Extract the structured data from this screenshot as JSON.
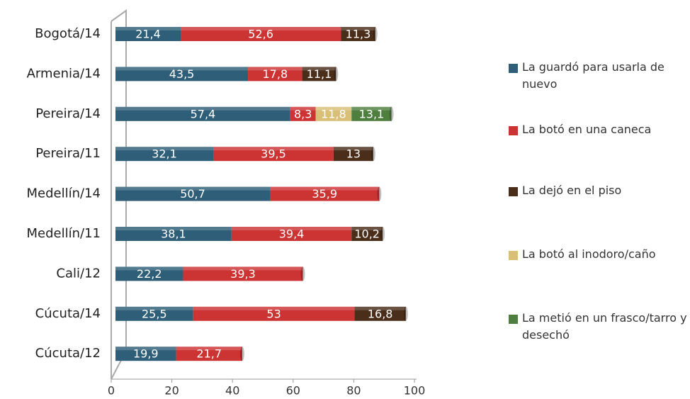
{
  "chart_data": {
    "type": "stacked-bar-horizontal",
    "categories": [
      "Bogotá/14",
      "Armenia/14",
      "Pereira/14",
      "Pereira/11",
      "Medellín/14",
      "Medellín/11",
      "Cali/12",
      "Cúcuta/14",
      "Cúcuta/12"
    ],
    "series": [
      {
        "name": "La guardó para usarla de nuevo",
        "color": "#2e5e78",
        "values": [
          21.4,
          43.5,
          57.4,
          32.1,
          50.7,
          38.1,
          22.2,
          25.5,
          19.9
        ],
        "value_labels": [
          "21,4",
          "43,5",
          "57,4",
          "32,1",
          "50,7",
          "38,1",
          "22,2",
          "25,5",
          "19,9"
        ]
      },
      {
        "name": "La botó en una caneca",
        "color": "#cc3333",
        "values": [
          52.6,
          17.8,
          8.3,
          39.5,
          35.9,
          39.4,
          39.3,
          53,
          21.7
        ],
        "value_labels": [
          "52,6",
          "17,8",
          "8,3",
          "39,5",
          "35,9",
          "39,4",
          "39,3",
          "53",
          "21,7"
        ]
      },
      {
        "name": "La dejó en el piso",
        "color": "#4a2e1a",
        "values": [
          11.3,
          11.1,
          null,
          13,
          null,
          10.2,
          null,
          16.8,
          null
        ],
        "value_labels": [
          "11,3",
          "11,1",
          null,
          "13",
          null,
          "10,2",
          null,
          "16,8",
          null
        ]
      },
      {
        "name": "La botó al inodoro/caño",
        "color": "#d9bf78",
        "values": [
          null,
          null,
          11.8,
          null,
          null,
          null,
          null,
          null,
          null
        ],
        "value_labels": [
          null,
          null,
          "11,8",
          null,
          null,
          null,
          null,
          null,
          null
        ]
      },
      {
        "name": "La metió en un frasco/tarro y desechó",
        "color": "#4f7f3f",
        "values": [
          null,
          null,
          13.1,
          null,
          null,
          null,
          null,
          null,
          null
        ],
        "value_labels": [
          null,
          null,
          "13,1",
          null,
          null,
          null,
          null,
          null,
          null
        ]
      }
    ],
    "xlim": [
      0,
      100
    ],
    "xticks": [
      0,
      20,
      40,
      60,
      80,
      100
    ],
    "legend": "right"
  }
}
